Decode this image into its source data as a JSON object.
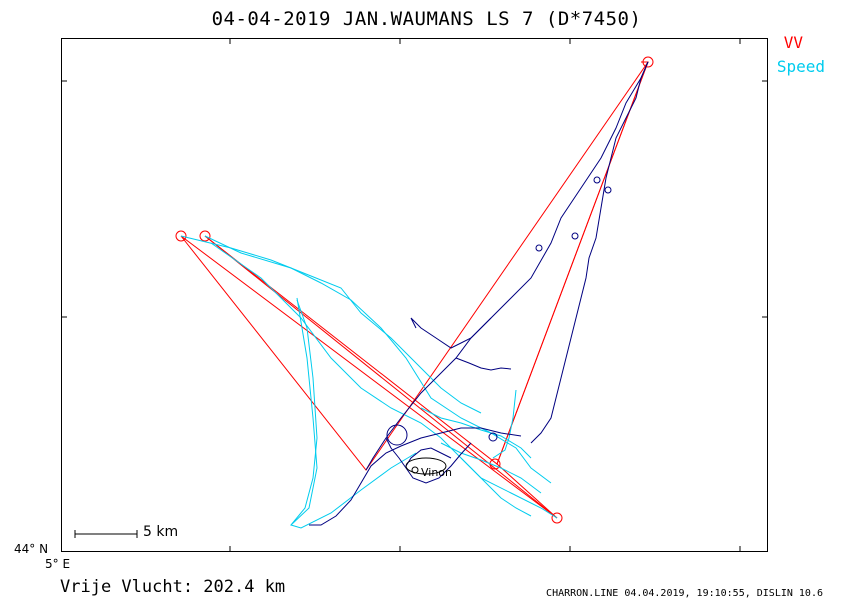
{
  "header": {
    "title": "04-04-2019   JAN.WAUMANS   LS 7 (D*7450)"
  },
  "legend": {
    "items": [
      {
        "label": "VV",
        "color": "#ff0000"
      },
      {
        "label": "Speed",
        "color": "#00ccee"
      }
    ]
  },
  "axes": {
    "lat_label": "44° N",
    "lon_label": "5° E"
  },
  "scale": {
    "label": "5 km"
  },
  "map": {
    "town_label": "Vinon",
    "track_color_climb": "#000080",
    "track_color_speed": "#00ccee",
    "task_line_color": "#ff0000"
  },
  "summary": {
    "free_flight": "Vrije Vlucht:  202.4 km"
  },
  "footer": {
    "credit": "CHARRON.LINE 04.04.2019, 19:10:55, DISLIN 10.6"
  }
}
